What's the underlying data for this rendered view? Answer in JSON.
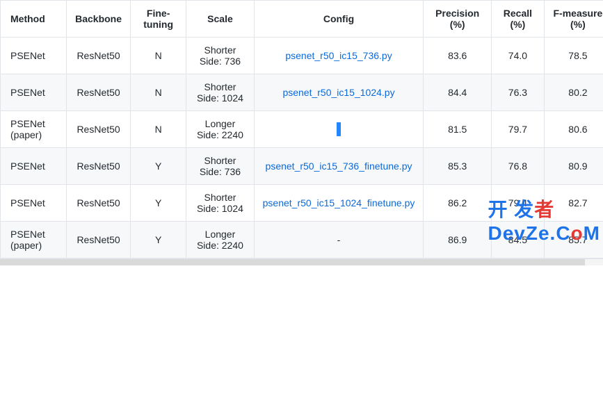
{
  "table": {
    "columns": [
      {
        "key": "method",
        "label": "Method",
        "class": "method-col"
      },
      {
        "key": "backbone",
        "label": "Backbone"
      },
      {
        "key": "fine",
        "label": "Fine-tuning"
      },
      {
        "key": "scale",
        "label": "Scale"
      },
      {
        "key": "config",
        "label": "Config"
      },
      {
        "key": "precision",
        "label": "Precision (%)"
      },
      {
        "key": "recall",
        "label": "Recall (%)"
      },
      {
        "key": "fmeasure",
        "label": "F-measure (%)"
      }
    ],
    "rows": [
      {
        "method": "PSENet",
        "backbone": "ResNet50",
        "fine": "N",
        "scale": "Shorter Side: 736",
        "config": {
          "type": "link",
          "text": "psenet_r50_ic15_736.py"
        },
        "precision": "83.6",
        "recall": "74.0",
        "fmeasure": "78.5"
      },
      {
        "method": "PSENet",
        "backbone": "ResNet50",
        "fine": "N",
        "scale": "Shorter Side: 1024",
        "config": {
          "type": "link",
          "text": "psenet_r50_ic15_1024.py"
        },
        "precision": "84.4",
        "recall": "76.3",
        "fmeasure": "80.2"
      },
      {
        "method": "PSENet (paper)",
        "backbone": "ResNet50",
        "fine": "N",
        "scale": "Longer Side: 2240",
        "config": {
          "type": "bar"
        },
        "precision": "81.5",
        "recall": "79.7",
        "fmeasure": "80.6"
      },
      {
        "method": "PSENet",
        "backbone": "ResNet50",
        "fine": "Y",
        "scale": "Shorter Side: 736",
        "config": {
          "type": "link",
          "text": "psenet_r50_ic15_736_finetune.py"
        },
        "precision": "85.3",
        "recall": "76.8",
        "fmeasure": "80.9"
      },
      {
        "method": "PSENet",
        "backbone": "ResNet50",
        "fine": "Y",
        "scale": "Shorter Side: 1024",
        "config": {
          "type": "link",
          "text": "psenet_r50_ic15_1024_finetune.py"
        },
        "precision": "86.2",
        "recall": "79.4",
        "fmeasure": "82.7"
      },
      {
        "method": "PSENet (paper)",
        "backbone": "ResNet50",
        "fine": "Y",
        "scale": "Longer Side: 2240",
        "config": {
          "type": "text",
          "text": "-"
        },
        "precision": "86.9",
        "recall": "84.5",
        "fmeasure": "85.7"
      }
    ]
  },
  "watermark": {
    "part1": "开 发",
    "part2": "者",
    "bottom_blue": "DevZe.C",
    "bottom_red": "o",
    "bottom_blue2": "M"
  }
}
